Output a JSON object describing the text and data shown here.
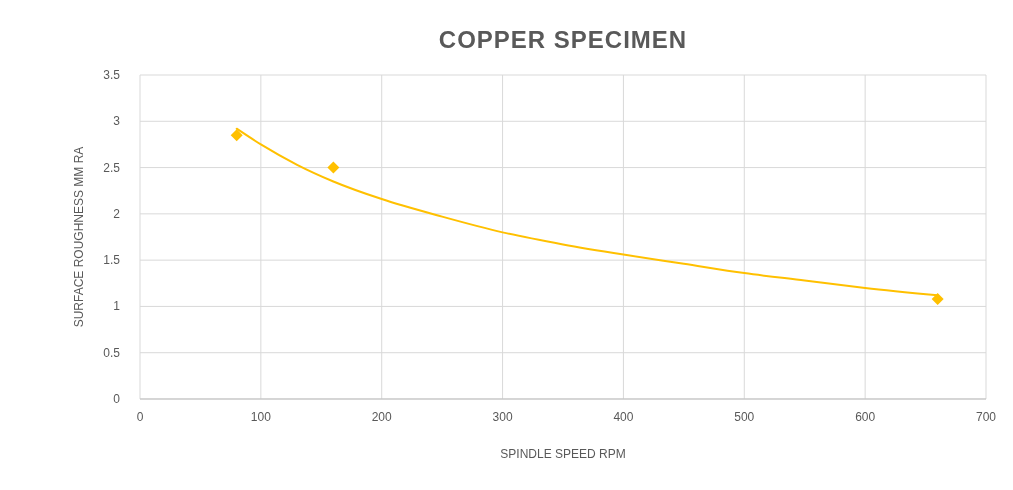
{
  "chart_data": {
    "type": "scatter",
    "title": "COPPER SPECIMEN",
    "xlabel": "SPINDLE SPEED RPM",
    "ylabel": "SURFACE ROUGHNESS MM RA",
    "xlim": [
      0,
      700
    ],
    "xticks": [
      0,
      100,
      200,
      300,
      400,
      500,
      600,
      700
    ],
    "ylim": [
      0,
      3.5
    ],
    "yticks": [
      0,
      0.5,
      1,
      1.5,
      2,
      2.5,
      3,
      3.5
    ],
    "grid": true,
    "series": [
      {
        "color": "#ffc000",
        "marker": "diamond",
        "x": [
          80,
          160,
          660
        ],
        "values": [
          2.85,
          2.5,
          1.08
        ]
      },
      {
        "type": "line",
        "color": "#ffc000",
        "marker": "none",
        "line_style": "solid",
        "x": [
          80,
          100,
          130,
          160,
          200,
          250,
          300,
          350,
          400,
          450,
          500,
          550,
          600,
          660
        ],
        "values": [
          2.92,
          2.75,
          2.53,
          2.35,
          2.16,
          1.97,
          1.8,
          1.67,
          1.56,
          1.46,
          1.36,
          1.28,
          1.2,
          1.12
        ]
      }
    ]
  }
}
